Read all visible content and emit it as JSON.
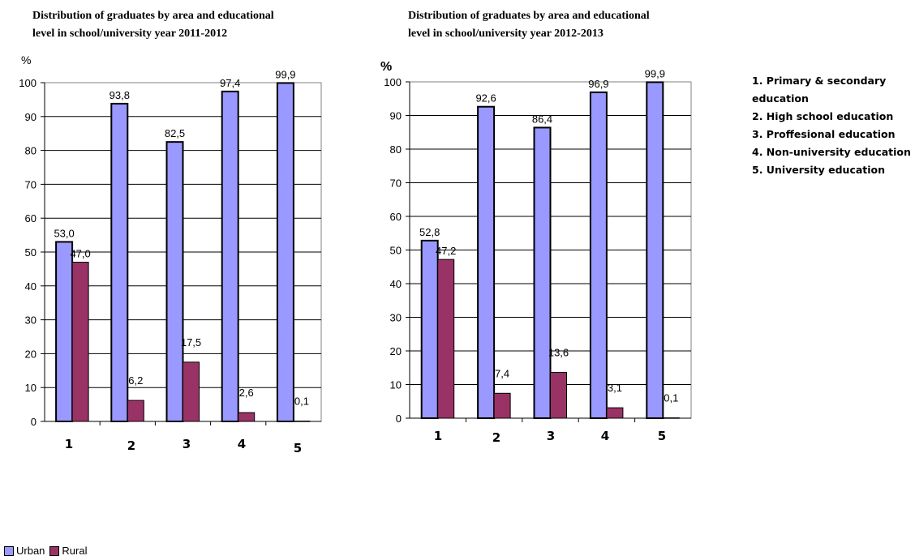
{
  "colors": {
    "urban": "#9999ff",
    "rural": "#993366"
  },
  "chart_data": [
    {
      "type": "bar",
      "title": "Distribution of graduates by area and educational\nlevel in school/university year 2011-2012",
      "ylabel": "%",
      "ylim": [
        0,
        100
      ],
      "yticks": [
        "0",
        "10",
        "20",
        "30",
        "40",
        "50",
        "60",
        "70",
        "80",
        "90",
        "100"
      ],
      "categories": [
        "1",
        "2",
        "3",
        "4",
        "5"
      ],
      "series": [
        {
          "name": "Urban",
          "values": [
            53.0,
            93.8,
            82.5,
            97.4,
            99.9
          ],
          "labels": [
            "53,0",
            "93,8",
            "82,5",
            "97,4",
            "99,9"
          ]
        },
        {
          "name": "Rural",
          "values": [
            47.0,
            6.2,
            17.5,
            2.6,
            0.1
          ],
          "labels": [
            "47,0",
            "6,2",
            "17,5",
            "2,6",
            "0,1"
          ]
        }
      ],
      "grid": true
    },
    {
      "type": "bar",
      "title": "Distribution of graduates by area and educational\nlevel in school/university year 2012-2013",
      "ylabel": "%",
      "ylim": [
        0,
        100
      ],
      "yticks": [
        "0",
        "10",
        "20",
        "30",
        "40",
        "50",
        "60",
        "70",
        "80",
        "90",
        "100"
      ],
      "categories": [
        "1",
        "2",
        "3",
        "4",
        "5"
      ],
      "series": [
        {
          "name": "Urban",
          "values": [
            52.8,
            92.6,
            86.4,
            96.9,
            99.9
          ],
          "labels": [
            "52,8",
            "92,6",
            "86,4",
            "96,9",
            "99,9"
          ]
        },
        {
          "name": "Rural",
          "values": [
            47.2,
            7.4,
            13.6,
            3.1,
            0.1
          ],
          "labels": [
            "47,2",
            "7,4",
            "13,6",
            "3,1",
            "0,1"
          ]
        }
      ],
      "grid": true
    }
  ],
  "category_legend": [
    "1. Primary & secondary education",
    "2. High school education",
    "3. Proffesional education",
    "4. Non-university education",
    "5. University education"
  ],
  "series_legend": [
    "Urban",
    "Rural"
  ]
}
